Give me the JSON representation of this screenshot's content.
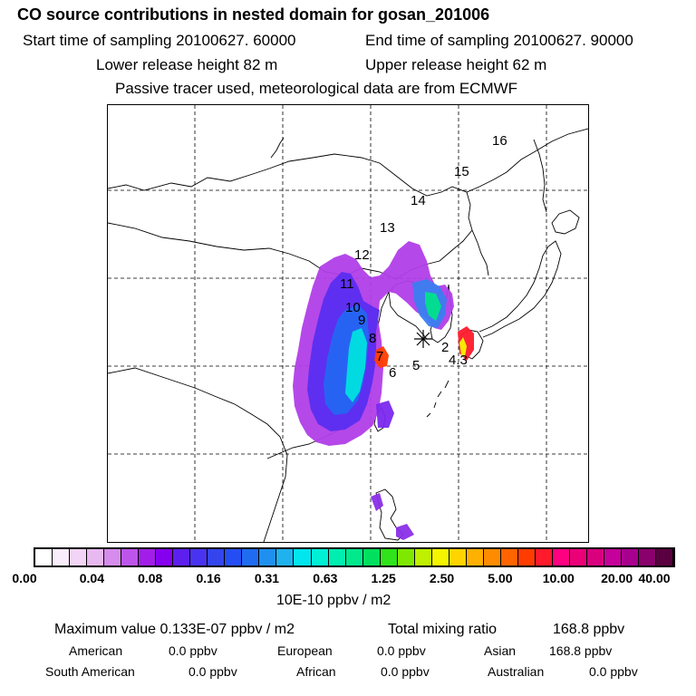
{
  "header": {
    "title": "CO  source contributions in nested domain for gosan_201006",
    "start_time": "Start time of sampling 20100627. 60000",
    "end_time": "End time of sampling 20100627. 90000",
    "lower_height": "Lower release height   82 m",
    "upper_height": "Upper release height   62 m",
    "tracer_note": "Passive tracer used, meteorological data are from ECMWF"
  },
  "map": {
    "receptor_symbol": "✳",
    "trajectory_labels": [
      "2",
      "4.3",
      "5",
      "6",
      "7",
      "8",
      "9",
      "10",
      "11",
      "12",
      "13",
      "14",
      "15",
      "16"
    ]
  },
  "legend": {
    "colors": [
      "#ffffff",
      "#f9ecfb",
      "#f1d4f6",
      "#e8b8f1",
      "#d58cec",
      "#bd55ea",
      "#a21ee8",
      "#8600f0",
      "#5d1fee",
      "#4a33f0",
      "#3445ee",
      "#244ef4",
      "#1f6cf2",
      "#1f90f0",
      "#1fb2ee",
      "#00e5ee",
      "#00f0d6",
      "#00eeb0",
      "#00e98c",
      "#00e05e",
      "#30e31a",
      "#7fe800",
      "#bef000",
      "#f5f500",
      "#ffd400",
      "#ffb000",
      "#ff8c00",
      "#ff6400",
      "#ff3c00",
      "#ff1a2c",
      "#ff0080",
      "#ec0078",
      "#d8007e",
      "#c6009a",
      "#a8008e",
      "#8a006c",
      "#5a0040"
    ],
    "tick_labels": [
      "0.00",
      "0.04",
      "0.08",
      "0.16",
      "0.31",
      "0.63",
      "1.25",
      "2.50",
      "5.00",
      "10.00",
      "20.00",
      "40.00"
    ],
    "units": "10E-10 ppbv / m2"
  },
  "stats": {
    "max_label": "Maximum value  0.133E-07 ppbv / m2",
    "total_label": "Total mixing ratio",
    "total_value": "168.8 ppbv",
    "american_label": "American",
    "american_value": "0.0 ppbv",
    "european_label": "European",
    "european_value": "0.0 ppbv",
    "asian_label": "Asian",
    "asian_value": "168.8 ppbv",
    "south_american_label": "South American",
    "south_american_value": "0.0 ppbv",
    "african_label": "African",
    "african_value": "0.0 ppbv",
    "australian_label": "Australian",
    "australian_value": "0.0 ppbv"
  }
}
